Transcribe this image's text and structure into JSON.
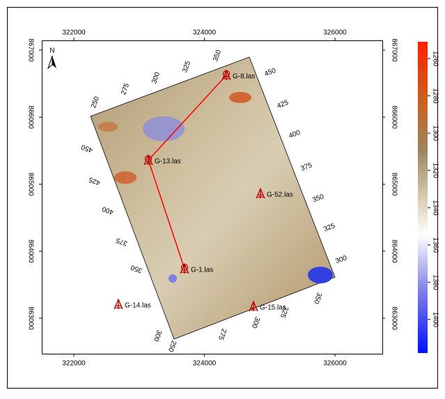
{
  "map": {
    "xlim": [
      321509,
      326725
    ],
    "ylim": [
      862470,
      867145
    ],
    "xticks": [
      322000,
      324000,
      326000
    ],
    "yticks": [
      863000,
      864000,
      865000,
      866000,
      867000
    ],
    "north": "N",
    "top_edge_labels": [
      250,
      275,
      300,
      325,
      350
    ],
    "left_edge_labels": [
      450,
      425,
      400,
      375,
      350
    ],
    "right_edge_labels": [
      450,
      425,
      400,
      375,
      350,
      325,
      300
    ],
    "bottom_edge_labels": [
      300,
      250,
      275,
      300,
      325,
      350
    ],
    "wells": [
      "G-8.las",
      "G-13.las",
      "G-52.las",
      "G-1.las",
      "G-14.las",
      "G-15.las"
    ],
    "colorbar": {
      "lim": [
        1251,
        1418
      ],
      "ticks": [
        1260,
        1280,
        1300,
        1320,
        1340,
        1360,
        1380,
        1400
      ]
    }
  }
}
